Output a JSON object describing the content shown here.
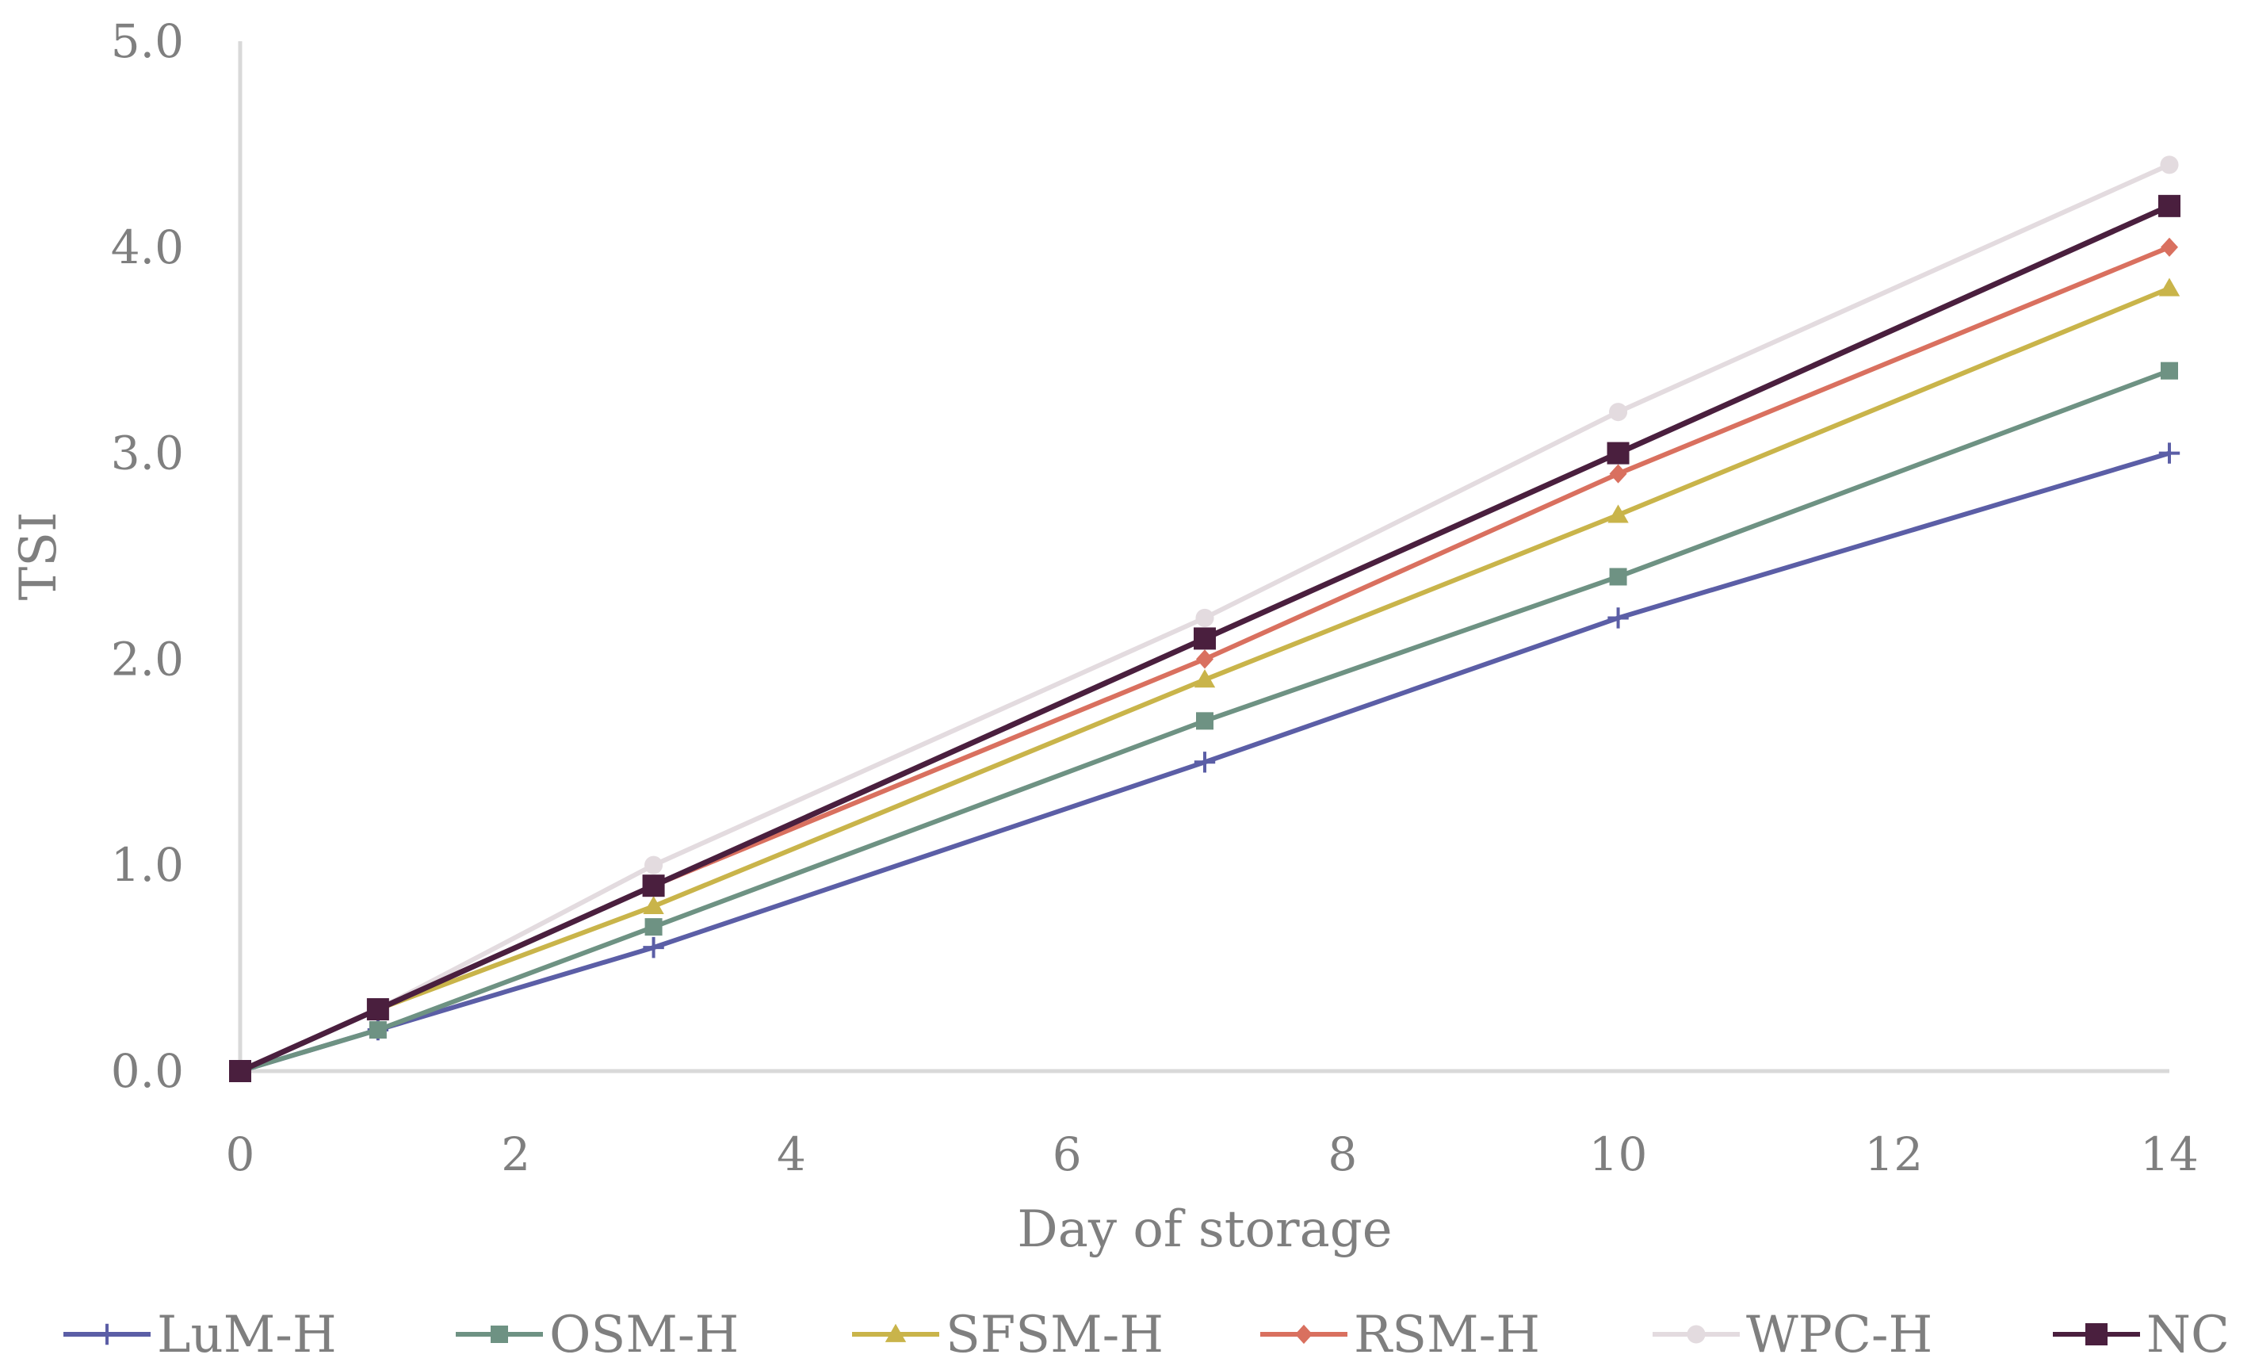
{
  "chart_data": {
    "type": "line",
    "title": "",
    "xlabel": "Day of storage",
    "ylabel": "TSI",
    "x": [
      0,
      1,
      3,
      7,
      10,
      14
    ],
    "xlim": [
      0,
      14
    ],
    "ylim": [
      0,
      5
    ],
    "x_ticks": [
      "0",
      "2",
      "4",
      "6",
      "8",
      "10",
      "12",
      "14"
    ],
    "y_ticks": [
      "0.0",
      "1.0",
      "2.0",
      "3.0",
      "4.0",
      "5.0"
    ],
    "grid": false,
    "legend_position": "bottom",
    "series": [
      {
        "name": "LuM-H",
        "color": "#5b5ea6",
        "marker": "plus",
        "values": [
          0,
          0.2,
          0.6,
          1.5,
          2.2,
          3.0
        ]
      },
      {
        "name": "OSM-H",
        "color": "#6e9283",
        "marker": "square",
        "values": [
          0,
          0.2,
          0.7,
          1.7,
          2.4,
          3.4
        ]
      },
      {
        "name": "SFSM-H",
        "color": "#c9b44a",
        "marker": "triangle",
        "values": [
          0,
          0.3,
          0.8,
          1.9,
          2.7,
          3.8
        ]
      },
      {
        "name": "RSM-H",
        "color": "#d9705f",
        "marker": "diamond",
        "values": [
          0,
          0.3,
          0.9,
          2.0,
          2.9,
          4.0
        ]
      },
      {
        "name": "WPC-H",
        "color": "#e3dbdf",
        "marker": "circle",
        "values": [
          0,
          0.3,
          1.0,
          2.2,
          3.2,
          4.4
        ]
      },
      {
        "name": "NC",
        "color": "#4a1f3e",
        "marker": "square",
        "values": [
          0,
          0.3,
          0.9,
          2.1,
          3.0,
          4.2
        ]
      }
    ]
  }
}
